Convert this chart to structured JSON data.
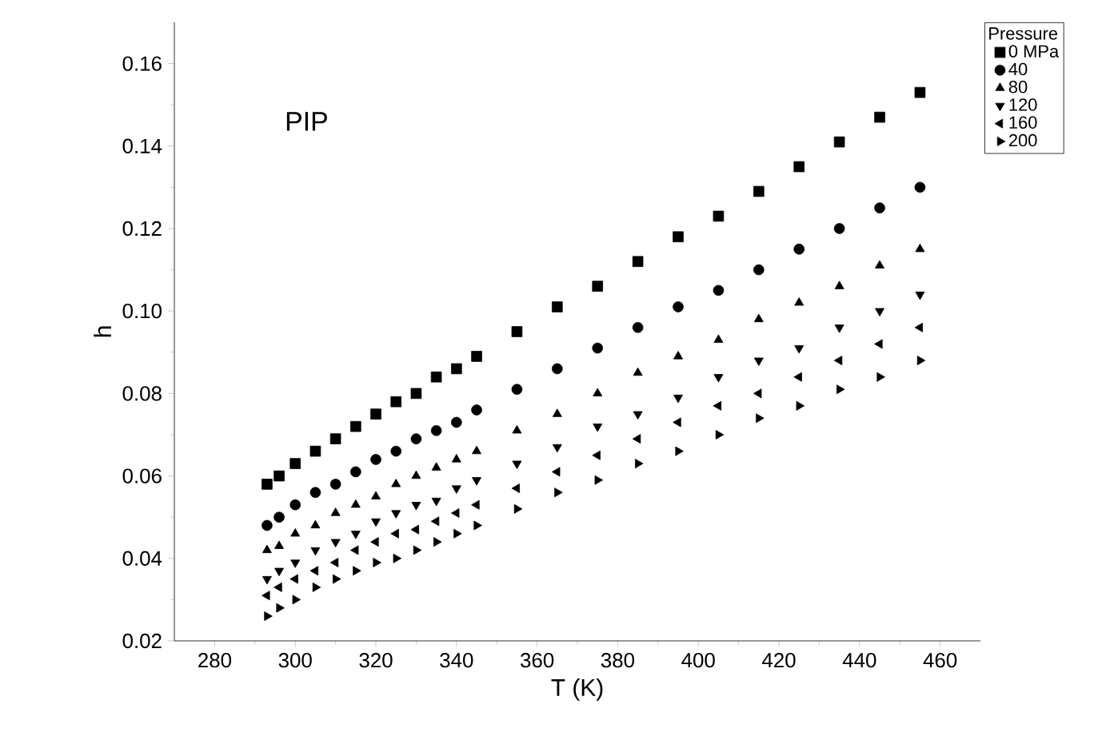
{
  "chart_data": {
    "type": "scatter",
    "xlabel": "T (K)",
    "ylabel": "h",
    "legend_title": "Pressure",
    "legend": "top right",
    "annotations": [
      "PIP"
    ],
    "x": [
      293,
      296,
      300,
      305,
      310,
      315,
      320,
      325,
      330,
      335,
      340,
      345,
      355,
      365,
      375,
      385,
      395,
      405,
      415,
      425,
      435,
      445,
      455
    ],
    "xlim": [
      270,
      470
    ],
    "xticks": [
      280,
      300,
      320,
      340,
      360,
      380,
      400,
      420,
      440,
      460
    ],
    "ylim": [
      0.02,
      0.17
    ],
    "yticks": [
      {
        "value": 0.02,
        "label": "0.02"
      },
      {
        "value": 0.04,
        "label": "0.04"
      },
      {
        "value": 0.06,
        "label": "0.06"
      },
      {
        "value": 0.08,
        "label": "0.08"
      },
      {
        "value": 0.1,
        "label": "0.10"
      },
      {
        "value": 0.12,
        "label": "0.12"
      },
      {
        "value": 0.14,
        "label": "0.14"
      },
      {
        "value": 0.16,
        "label": "0.16"
      }
    ],
    "grid": false,
    "series": [
      {
        "name": "0 MPa",
        "color": "#000000",
        "marker": "square",
        "values": [
          0.058,
          0.06,
          0.063,
          0.066,
          0.069,
          0.072,
          0.075,
          0.078,
          0.08,
          0.084,
          0.086,
          0.089,
          0.095,
          0.101,
          0.106,
          0.112,
          0.118,
          0.123,
          0.129,
          0.135,
          0.141,
          0.147,
          0.153
        ]
      },
      {
        "name": "40",
        "color": "#000000",
        "marker": "circle",
        "values": [
          0.048,
          0.05,
          0.053,
          0.056,
          0.058,
          0.061,
          0.064,
          0.066,
          0.069,
          0.071,
          0.073,
          0.076,
          0.081,
          0.086,
          0.091,
          0.096,
          0.101,
          0.105,
          0.11,
          0.115,
          0.12,
          0.125,
          0.13
        ]
      },
      {
        "name": "80",
        "color": "#000000",
        "marker": "triangle",
        "values": [
          0.042,
          0.043,
          0.046,
          0.048,
          0.051,
          0.053,
          0.055,
          0.058,
          0.06,
          0.062,
          0.064,
          0.066,
          0.071,
          0.075,
          0.08,
          0.085,
          0.089,
          0.093,
          0.098,
          0.102,
          0.106,
          0.111,
          0.115
        ]
      },
      {
        "name": "120",
        "color": "#000000",
        "marker": "triangle-down",
        "values": [
          0.035,
          0.037,
          0.039,
          0.042,
          0.044,
          0.046,
          0.049,
          0.051,
          0.053,
          0.054,
          0.057,
          0.059,
          0.063,
          0.067,
          0.072,
          0.075,
          0.079,
          0.084,
          0.088,
          0.091,
          0.096,
          0.1,
          0.104
        ]
      },
      {
        "name": "160",
        "color": "#000000",
        "marker": "triangle-left",
        "values": [
          0.031,
          0.033,
          0.035,
          0.037,
          0.039,
          0.042,
          0.044,
          0.046,
          0.047,
          0.049,
          0.051,
          0.053,
          0.057,
          0.061,
          0.065,
          0.069,
          0.073,
          0.077,
          0.08,
          0.084,
          0.088,
          0.092,
          0.096
        ]
      },
      {
        "name": "200",
        "color": "#000000",
        "marker": "triangle-right",
        "values": [
          0.026,
          0.028,
          0.03,
          0.033,
          0.035,
          0.037,
          0.039,
          0.04,
          0.042,
          0.044,
          0.046,
          0.048,
          0.052,
          0.056,
          0.059,
          0.063,
          0.066,
          0.07,
          0.074,
          0.077,
          0.081,
          0.084,
          0.088
        ]
      }
    ]
  }
}
